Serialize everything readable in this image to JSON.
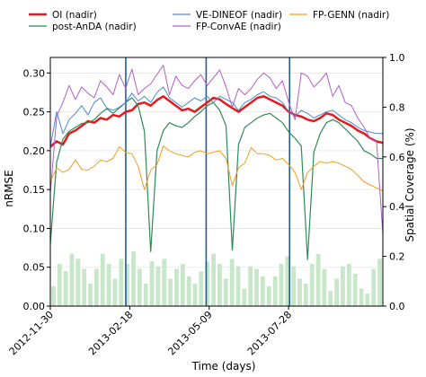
{
  "chart_data": {
    "type": "line",
    "xlabel": "Time (days)",
    "ylabel_left": "nRMSE",
    "ylabel_right": "Spatial Coverage (%)",
    "x_range": [
      "2012-11-30",
      "2013-10-31"
    ],
    "ylim_left": [
      0.0,
      0.32
    ],
    "ylim_right": [
      0.0,
      1.0
    ],
    "x_ticks": [
      "2012-11-30",
      "2013-02-18",
      "2013-05-09",
      "2013-07-28"
    ],
    "y_ticks_left": [
      "0.00",
      "0.05",
      "0.10",
      "0.15",
      "0.20",
      "0.25",
      "0.30"
    ],
    "y_ticks_right": [
      "0.0",
      "0.2",
      "0.4",
      "0.6",
      "0.8",
      "1.0"
    ],
    "grid": "horizontal",
    "legend_position": "top, above plot",
    "vlines": [
      "2013-02-14",
      "2013-05-06",
      "2013-07-29"
    ],
    "vline_color": "#1f5fa0",
    "series": [
      {
        "name": "OI (nadir)",
        "color": "#e41a1c",
        "width": 2.5,
        "values": [
          0.205,
          0.212,
          0.208,
          0.222,
          0.226,
          0.232,
          0.238,
          0.236,
          0.242,
          0.24,
          0.246,
          0.244,
          0.25,
          0.252,
          0.26,
          0.262,
          0.258,
          0.265,
          0.27,
          0.264,
          0.258,
          0.252,
          0.254,
          0.25,
          0.256,
          0.262,
          0.268,
          0.266,
          0.26,
          0.255,
          0.25,
          0.256,
          0.262,
          0.268,
          0.27,
          0.266,
          0.262,
          0.258,
          0.25,
          0.246,
          0.244,
          0.24,
          0.238,
          0.242,
          0.248,
          0.246,
          0.24,
          0.236,
          0.232,
          0.226,
          0.222,
          0.216,
          0.212,
          0.21
        ]
      },
      {
        "name": "post-AnDA (nadir)",
        "color": "#2e8b57",
        "width": 1.2,
        "values": [
          0.08,
          0.185,
          0.215,
          0.225,
          0.23,
          0.235,
          0.236,
          0.24,
          0.248,
          0.254,
          0.248,
          0.255,
          0.262,
          0.268,
          0.258,
          0.225,
          0.07,
          0.2,
          0.226,
          0.236,
          0.232,
          0.23,
          0.236,
          0.244,
          0.25,
          0.258,
          0.262,
          0.252,
          0.232,
          0.072,
          0.208,
          0.23,
          0.236,
          0.242,
          0.246,
          0.248,
          0.242,
          0.236,
          0.224,
          0.216,
          0.206,
          0.06,
          0.198,
          0.222,
          0.236,
          0.24,
          0.236,
          0.228,
          0.22,
          0.212,
          0.2,
          0.196,
          0.19,
          0.19
        ]
      },
      {
        "name": "VE-DINEOF (nadir)",
        "color": "#4c8ad1",
        "width": 1.0,
        "values": [
          0.205,
          0.25,
          0.222,
          0.24,
          0.248,
          0.258,
          0.246,
          0.262,
          0.268,
          0.255,
          0.252,
          0.256,
          0.262,
          0.274,
          0.264,
          0.27,
          0.262,
          0.275,
          0.282,
          0.268,
          0.262,
          0.256,
          0.262,
          0.268,
          0.264,
          0.27,
          0.262,
          0.27,
          0.266,
          0.262,
          0.252,
          0.262,
          0.266,
          0.272,
          0.276,
          0.27,
          0.268,
          0.262,
          0.25,
          0.244,
          0.252,
          0.248,
          0.242,
          0.246,
          0.25,
          0.252,
          0.246,
          0.24,
          0.236,
          0.23,
          0.226,
          0.224,
          0.222,
          0.222
        ]
      },
      {
        "name": "FP-ConvAE (nadir)",
        "color": "#b05fc8",
        "width": 1.0,
        "values": [
          0.145,
          0.244,
          0.262,
          0.284,
          0.266,
          0.282,
          0.274,
          0.268,
          0.29,
          0.282,
          0.272,
          0.298,
          0.28,
          0.305,
          0.272,
          0.28,
          0.286,
          0.298,
          0.31,
          0.272,
          0.296,
          0.284,
          0.28,
          0.29,
          0.298,
          0.284,
          0.294,
          0.304,
          0.282,
          0.256,
          0.28,
          0.272,
          0.28,
          0.292,
          0.3,
          0.294,
          0.28,
          0.29,
          0.262,
          0.24,
          0.3,
          0.296,
          0.282,
          0.29,
          0.3,
          0.27,
          0.284,
          0.262,
          0.258,
          0.242,
          0.23,
          0.215,
          0.212,
          0.092
        ]
      },
      {
        "name": "FP-GENN (nadir)",
        "color": "#f39c1e",
        "width": 1.0,
        "values": [
          0.16,
          0.178,
          0.172,
          0.176,
          0.188,
          0.176,
          0.175,
          0.18,
          0.188,
          0.186,
          0.19,
          0.205,
          0.198,
          0.196,
          0.18,
          0.15,
          0.175,
          0.182,
          0.206,
          0.2,
          0.196,
          0.194,
          0.192,
          0.198,
          0.2,
          0.196,
          0.198,
          0.2,
          0.19,
          0.155,
          0.178,
          0.184,
          0.204,
          0.196,
          0.196,
          0.194,
          0.188,
          0.19,
          0.182,
          0.172,
          0.15,
          0.172,
          0.18,
          0.186,
          0.184,
          0.186,
          0.184,
          0.18,
          0.176,
          0.168,
          0.16,
          0.156,
          0.152,
          0.148
        ]
      }
    ],
    "coverage": {
      "color": "#c8e6c9",
      "values": [
        0.08,
        0.17,
        0.14,
        0.21,
        0.19,
        0.15,
        0.09,
        0.15,
        0.21,
        0.17,
        0.11,
        0.19,
        0.17,
        0.22,
        0.15,
        0.09,
        0.18,
        0.16,
        0.19,
        0.11,
        0.15,
        0.17,
        0.12,
        0.09,
        0.14,
        0.18,
        0.21,
        0.17,
        0.11,
        0.19,
        0.16,
        0.07,
        0.16,
        0.15,
        0.12,
        0.08,
        0.12,
        0.17,
        0.2,
        0.16,
        0.11,
        0.09,
        0.17,
        0.21,
        0.15,
        0.06,
        0.11,
        0.16,
        0.17,
        0.13,
        0.07,
        0.05,
        0.15,
        0.19
      ]
    }
  }
}
